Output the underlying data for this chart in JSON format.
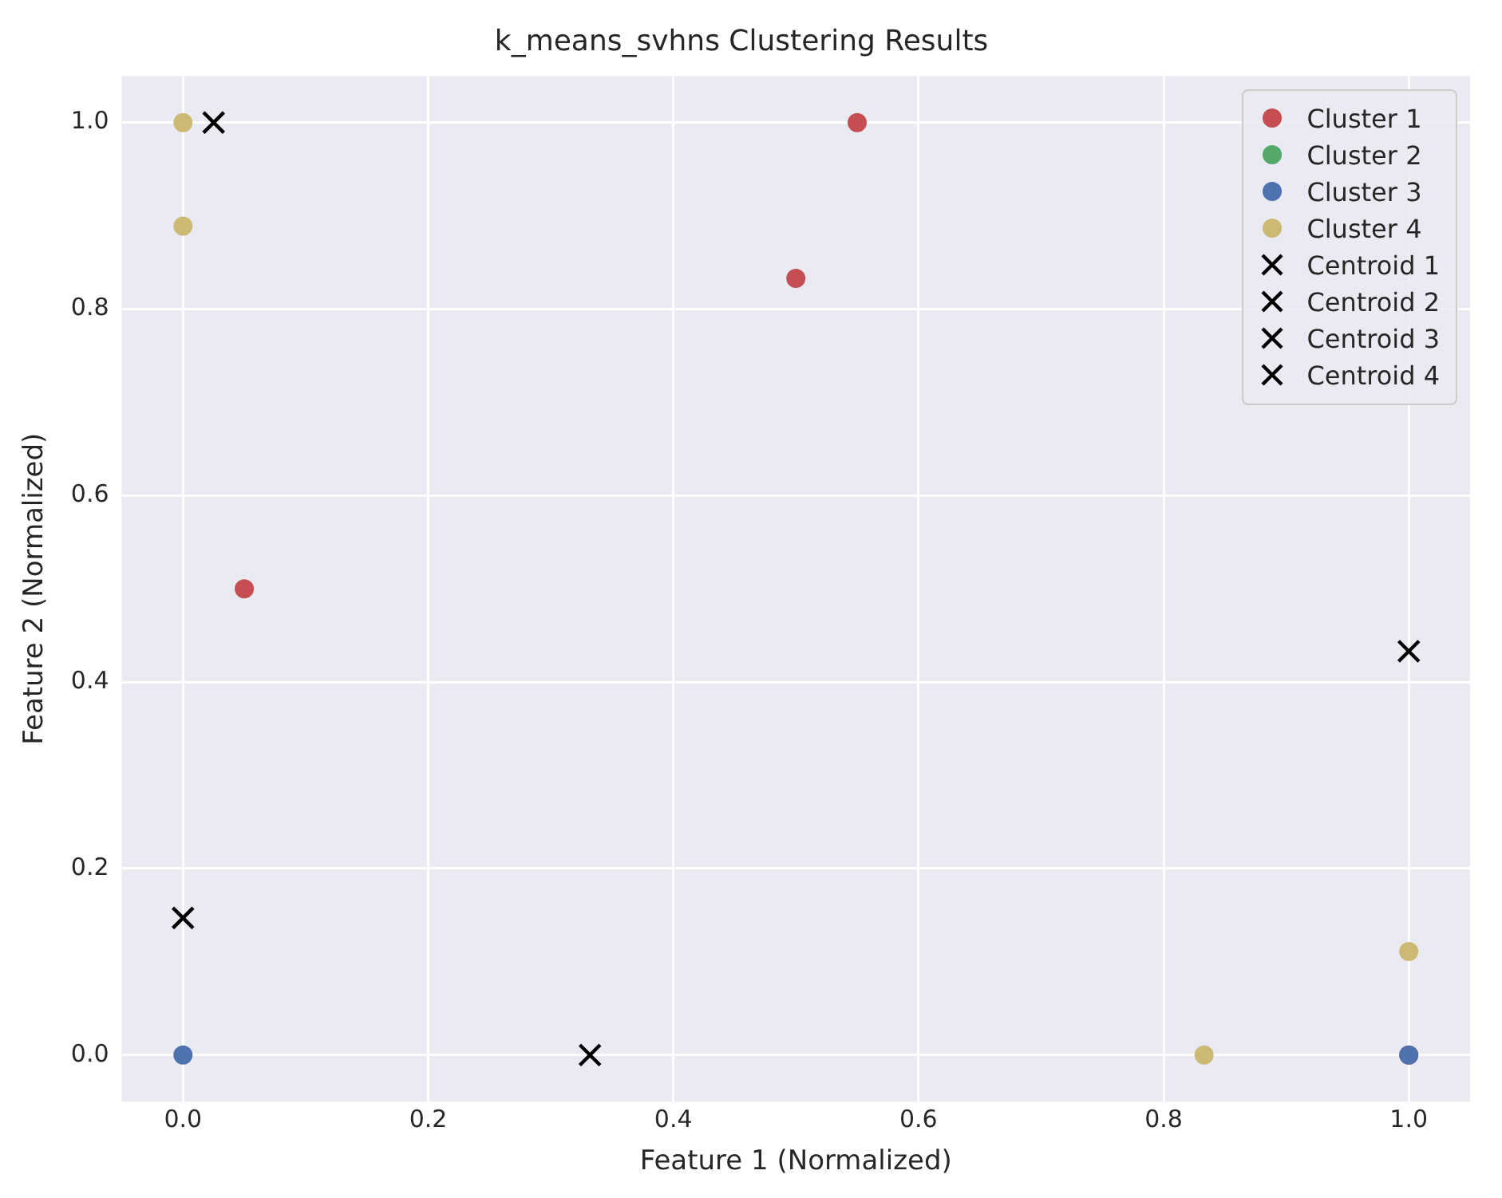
{
  "chart_data": {
    "type": "scatter",
    "title": "k_means_svhns Clustering Results",
    "xlabel": "Feature 1 (Normalized)",
    "ylabel": "Feature 2 (Normalized)",
    "xlim": [
      -0.05,
      1.05
    ],
    "ylim": [
      -0.05,
      1.05
    ],
    "xticks": [
      {
        "value": 0,
        "label": "0.0"
      },
      {
        "value": 0.2,
        "label": "0.2"
      },
      {
        "value": 0.4,
        "label": "0.4"
      },
      {
        "value": 0.6,
        "label": "0.6"
      },
      {
        "value": 0.8,
        "label": "0.8"
      },
      {
        "value": 1,
        "label": "1.0"
      }
    ],
    "yticks": [
      {
        "value": 0,
        "label": "0.0"
      },
      {
        "value": 0.2,
        "label": "0.2"
      },
      {
        "value": 0.4,
        "label": "0.4"
      },
      {
        "value": 0.6,
        "label": "0.6"
      },
      {
        "value": 0.8,
        "label": "0.8"
      },
      {
        "value": 1,
        "label": "1.0"
      }
    ],
    "grid": true,
    "legend": "top right",
    "series": [
      {
        "name": "Cluster 1",
        "color": "#c44e52",
        "marker": "circle",
        "x": [
          1,
          0.55,
          0.5,
          0.05
        ],
        "values": [
          0,
          1,
          0.833,
          0.5
        ]
      },
      {
        "name": "Cluster 2",
        "color": "#55a868",
        "marker": "circle"
      },
      {
        "name": "Cluster 3",
        "color": "#4c72b0",
        "marker": "circle",
        "x": [
          0,
          1
        ],
        "values": [
          0,
          0
        ]
      },
      {
        "name": "Cluster 4",
        "color": "#ccb974",
        "marker": "circle",
        "x": [
          0,
          0,
          1,
          0.833
        ],
        "values": [
          1,
          0.889,
          0.111,
          0
        ]
      },
      {
        "name": "Centroid 1",
        "color": "#000000",
        "marker": "cross",
        "x": [
          0.025
        ],
        "values": [
          1
        ]
      },
      {
        "name": "Centroid 2",
        "color": "#000000",
        "marker": "cross",
        "x": [
          0
        ],
        "values": [
          0.147
        ]
      },
      {
        "name": "Centroid 3",
        "color": "#000000",
        "marker": "cross",
        "x": [
          0.332
        ],
        "values": [
          0
        ]
      },
      {
        "name": "Centroid 4",
        "color": "#000000",
        "marker": "cross",
        "x": [
          1
        ],
        "values": [
          0.433
        ]
      }
    ]
  }
}
